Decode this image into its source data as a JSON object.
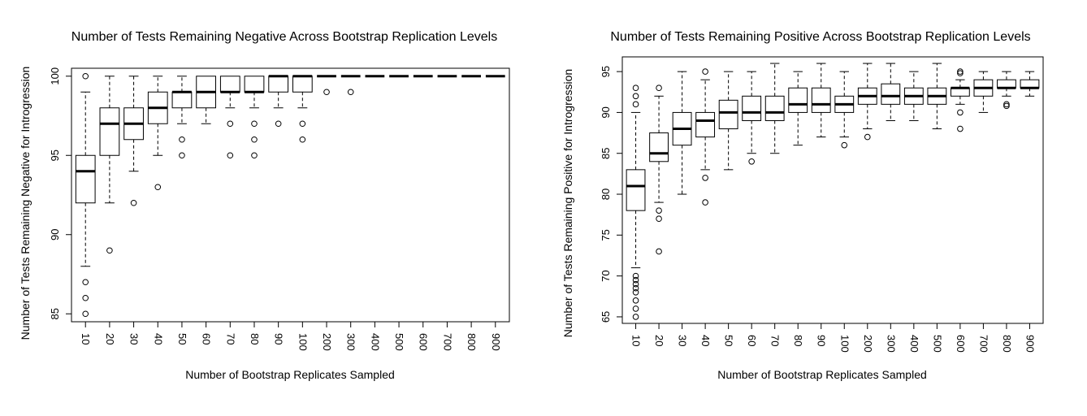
{
  "chart_data": [
    {
      "type": "box",
      "title": "Number of Tests Remaining Negative Across Bootstrap Replication Levels",
      "xlabel": "Number of Bootstrap Replicates Sampled",
      "ylabel": "Number of Tests Remaining Negative for Introgression",
      "categories": [
        "10",
        "20",
        "30",
        "40",
        "50",
        "60",
        "70",
        "80",
        "90",
        "100",
        "200",
        "300",
        "400",
        "500",
        "600",
        "700",
        "800",
        "900"
      ],
      "ylim": [
        84.5,
        100.5
      ],
      "yticks": [
        85,
        90,
        95,
        100
      ],
      "boxes": [
        {
          "min": 88,
          "q1": 92,
          "median": 94,
          "q3": 95,
          "max": 99,
          "outliers": [
            100,
            87,
            86,
            85
          ]
        },
        {
          "min": 92,
          "q1": 95,
          "median": 97,
          "q3": 98,
          "max": 100,
          "outliers": [
            89
          ]
        },
        {
          "min": 94,
          "q1": 96,
          "median": 97,
          "q3": 98,
          "max": 100,
          "outliers": [
            92
          ]
        },
        {
          "min": 95,
          "q1": 97,
          "median": 98,
          "q3": 99,
          "max": 100,
          "outliers": [
            93
          ]
        },
        {
          "min": 97,
          "q1": 98,
          "median": 99,
          "q3": 99,
          "max": 100,
          "outliers": [
            96,
            95
          ]
        },
        {
          "min": 97,
          "q1": 98,
          "median": 99,
          "q3": 100,
          "max": 100,
          "outliers": []
        },
        {
          "min": 98,
          "q1": 99,
          "median": 99,
          "q3": 100,
          "max": 100,
          "outliers": [
            97,
            95
          ]
        },
        {
          "min": 98,
          "q1": 99,
          "median": 99,
          "q3": 100,
          "max": 100,
          "outliers": [
            97,
            96,
            95
          ]
        },
        {
          "min": 98,
          "q1": 99,
          "median": 100,
          "q3": 100,
          "max": 100,
          "outliers": [
            97
          ]
        },
        {
          "min": 98,
          "q1": 99,
          "median": 100,
          "q3": 100,
          "max": 100,
          "outliers": [
            97,
            96
          ]
        },
        {
          "min": 100,
          "q1": 100,
          "median": 100,
          "q3": 100,
          "max": 100,
          "outliers": [
            99
          ]
        },
        {
          "min": 100,
          "q1": 100,
          "median": 100,
          "q3": 100,
          "max": 100,
          "outliers": [
            99
          ]
        },
        {
          "min": 100,
          "q1": 100,
          "median": 100,
          "q3": 100,
          "max": 100,
          "outliers": []
        },
        {
          "min": 100,
          "q1": 100,
          "median": 100,
          "q3": 100,
          "max": 100,
          "outliers": []
        },
        {
          "min": 100,
          "q1": 100,
          "median": 100,
          "q3": 100,
          "max": 100,
          "outliers": []
        },
        {
          "min": 100,
          "q1": 100,
          "median": 100,
          "q3": 100,
          "max": 100,
          "outliers": []
        },
        {
          "min": 100,
          "q1": 100,
          "median": 100,
          "q3": 100,
          "max": 100,
          "outliers": []
        },
        {
          "min": 100,
          "q1": 100,
          "median": 100,
          "q3": 100,
          "max": 100,
          "outliers": []
        }
      ]
    },
    {
      "type": "box",
      "title": "Number of Tests Remaining Positive Across Bootstrap Replication Levels",
      "xlabel": "Number of Bootstrap Replicates Sampled",
      "ylabel": "Number of Tests Remaining Positive for Introgression",
      "categories": [
        "10",
        "20",
        "30",
        "40",
        "50",
        "60",
        "70",
        "80",
        "90",
        "100",
        "200",
        "300",
        "400",
        "500",
        "600",
        "700",
        "800",
        "900"
      ],
      "ylim": [
        64.2,
        96.8
      ],
      "yticks": [
        65,
        70,
        75,
        80,
        85,
        90,
        95
      ],
      "boxes": [
        {
          "min": 71,
          "q1": 78,
          "median": 81,
          "q3": 83,
          "max": 90,
          "outliers": [
            93,
            92,
            91,
            70,
            69.5,
            69,
            68.5,
            68,
            67,
            66,
            65
          ]
        },
        {
          "min": 79,
          "q1": 84,
          "median": 85,
          "q3": 87.5,
          "max": 92,
          "outliers": [
            93,
            78,
            77,
            73
          ]
        },
        {
          "min": 80,
          "q1": 86,
          "median": 88,
          "q3": 90,
          "max": 95,
          "outliers": []
        },
        {
          "min": 83,
          "q1": 87,
          "median": 89,
          "q3": 90,
          "max": 94,
          "outliers": [
            95,
            82,
            79
          ]
        },
        {
          "min": 83,
          "q1": 88,
          "median": 90,
          "q3": 91.5,
          "max": 95,
          "outliers": []
        },
        {
          "min": 85,
          "q1": 89,
          "median": 90,
          "q3": 92,
          "max": 95,
          "outliers": [
            84
          ]
        },
        {
          "min": 85,
          "q1": 89,
          "median": 90,
          "q3": 92,
          "max": 96,
          "outliers": []
        },
        {
          "min": 86,
          "q1": 90,
          "median": 91,
          "q3": 93,
          "max": 95,
          "outliers": []
        },
        {
          "min": 87,
          "q1": 90,
          "median": 91,
          "q3": 93,
          "max": 96,
          "outliers": []
        },
        {
          "min": 87,
          "q1": 90,
          "median": 91,
          "q3": 92,
          "max": 95,
          "outliers": [
            86
          ]
        },
        {
          "min": 88,
          "q1": 91,
          "median": 92,
          "q3": 93,
          "max": 96,
          "outliers": [
            87
          ]
        },
        {
          "min": 89,
          "q1": 91,
          "median": 92,
          "q3": 93.5,
          "max": 96,
          "outliers": []
        },
        {
          "min": 89,
          "q1": 91,
          "median": 92,
          "q3": 93,
          "max": 95,
          "outliers": []
        },
        {
          "min": 88,
          "q1": 91,
          "median": 92,
          "q3": 93,
          "max": 96,
          "outliers": []
        },
        {
          "min": 91,
          "q1": 92,
          "median": 93,
          "q3": 93,
          "max": 94,
          "outliers": [
            95,
            94.8,
            90,
            88
          ]
        },
        {
          "min": 90,
          "q1": 92,
          "median": 93,
          "q3": 94,
          "max": 95,
          "outliers": []
        },
        {
          "min": 92,
          "q1": 93,
          "median": 93,
          "q3": 94,
          "max": 95,
          "outliers": [
            91,
            90.8
          ]
        },
        {
          "min": 92,
          "q1": 93,
          "median": 93,
          "q3": 94,
          "max": 95,
          "outliers": []
        }
      ]
    }
  ]
}
